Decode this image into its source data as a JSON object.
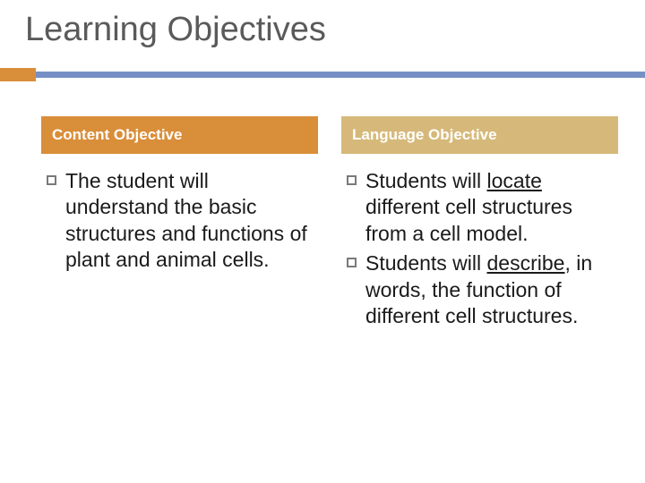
{
  "slide": {
    "title": "Learning Objectives",
    "underline_color": "#7690c5",
    "accent_color": "#d98e3a",
    "title_color": "#5a5a5a",
    "title_fontsize": 38,
    "body_fontsize": 23,
    "background_color": "#ffffff"
  },
  "left": {
    "header": "Content Objective",
    "header_bg": "#d98e3a",
    "items": [
      {
        "pre": "The student will understand the basic structures and functions of plant and animal cells.",
        "u": "",
        "post": ""
      }
    ]
  },
  "right": {
    "header": "Language Objective",
    "header_bg": "#d6b97a",
    "items": [
      {
        "pre": "Students will ",
        "u": "locate",
        "post": " different cell structures from a cell model."
      },
      {
        "pre": "Students will ",
        "u": "describe",
        "post": ", in words, the function of different cell structures."
      }
    ]
  }
}
